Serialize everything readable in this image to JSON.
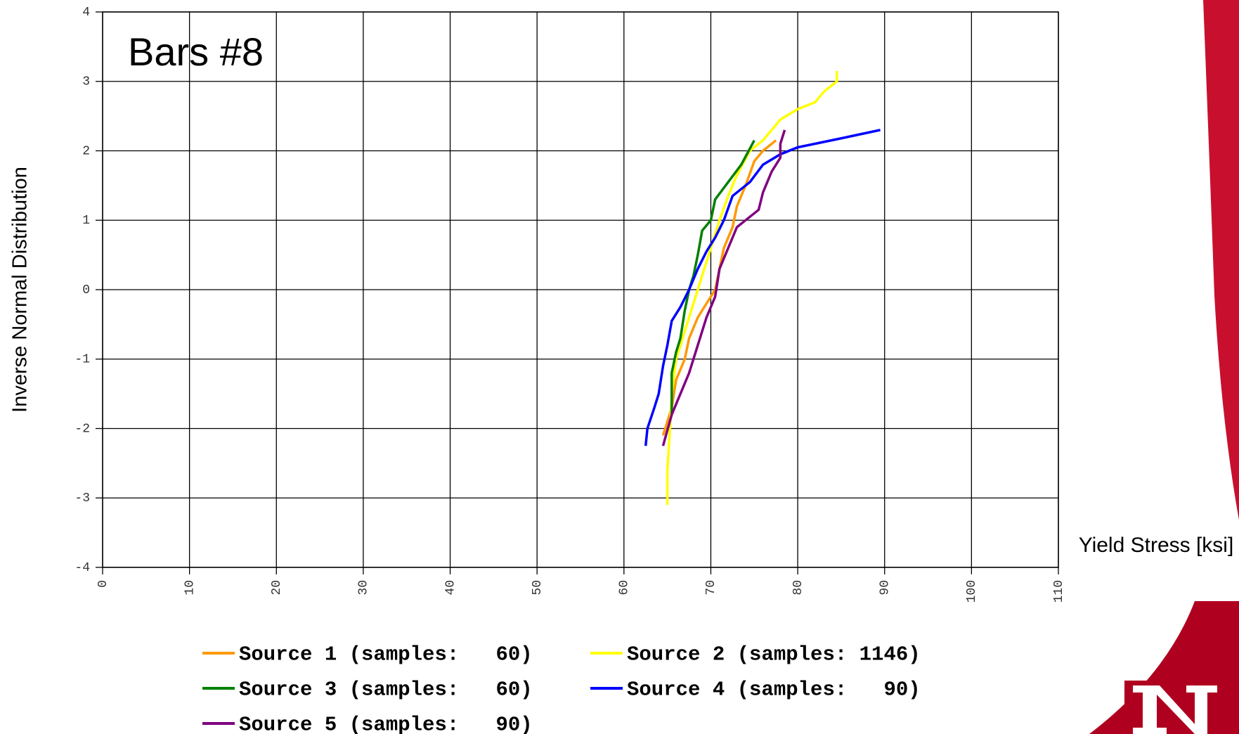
{
  "chart_data": {
    "type": "line",
    "title": "Bars #8",
    "y_label": "Inverse Normal Distribution",
    "x_label": "Yield Stress [ksi]",
    "xlim": [
      0,
      110
    ],
    "xticks": [
      0,
      10,
      20,
      30,
      40,
      50,
      60,
      70,
      80,
      90,
      100,
      110
    ],
    "ylim": [
      -4,
      4
    ],
    "yticks": [
      -4,
      -3,
      -2,
      -1,
      0,
      1,
      2,
      3,
      4
    ],
    "grid": true,
    "series": [
      {
        "name": "Source 1 (samples:   60)",
        "color": "#ff9900",
        "x": [
          64.5,
          65.5,
          66,
          67,
          67.5,
          68.5,
          69.5,
          70.5,
          71,
          71.5,
          72.5,
          73,
          74,
          75,
          76,
          77.5
        ],
        "values": [
          -2.1,
          -1.7,
          -1.3,
          -1.0,
          -0.7,
          -0.4,
          -0.2,
          0.0,
          0.3,
          0.6,
          0.9,
          1.2,
          1.5,
          1.85,
          2.0,
          2.15
        ]
      },
      {
        "name": "Source 2 (samples: 1146)",
        "color": "#ffff00",
        "x": [
          65,
          65,
          65.3,
          65.5,
          66,
          67,
          68,
          69,
          70,
          71,
          72,
          73,
          74.5,
          76,
          77,
          78,
          80,
          82,
          83,
          84.5,
          84.5
        ],
        "values": [
          -3.1,
          -2.6,
          -2.0,
          -1.5,
          -1.0,
          -0.6,
          -0.2,
          0.2,
          0.6,
          1.0,
          1.35,
          1.65,
          2.0,
          2.15,
          2.3,
          2.45,
          2.6,
          2.7,
          2.85,
          3.0,
          3.15
        ]
      },
      {
        "name": "Source 3 (samples:   60)",
        "color": "#008000",
        "x": [
          65.5,
          65.5,
          66,
          66.5,
          67,
          67.5,
          68,
          68.5,
          69,
          70,
          70.5,
          72,
          73.5,
          75
        ],
        "values": [
          -1.8,
          -1.2,
          -0.9,
          -0.7,
          -0.3,
          0.0,
          0.2,
          0.5,
          0.85,
          1.0,
          1.3,
          1.55,
          1.8,
          2.15
        ]
      },
      {
        "name": "Source 4 (samples:   90)",
        "color": "#0000ff",
        "x": [
          62.5,
          62.7,
          63.5,
          64,
          64.5,
          65,
          65.5,
          66.5,
          67.5,
          68.5,
          69.5,
          70.5,
          71.5,
          72.5,
          74.5,
          76,
          78,
          80,
          85,
          89.5
        ],
        "values": [
          -2.25,
          -2.0,
          -1.7,
          -1.5,
          -1.1,
          -0.8,
          -0.45,
          -0.25,
          0.0,
          0.3,
          0.55,
          0.75,
          1.0,
          1.35,
          1.55,
          1.8,
          1.95,
          2.05,
          2.18,
          2.3
        ]
      },
      {
        "name": "Source 5 (samples:   90)",
        "color": "#800080",
        "x": [
          64.5,
          65.5,
          66.5,
          67.5,
          68.5,
          69.5,
          70.5,
          71,
          72,
          73,
          74.5,
          75.5,
          76,
          77,
          78,
          78,
          78.5
        ],
        "values": [
          -2.25,
          -1.8,
          -1.5,
          -1.2,
          -0.8,
          -0.4,
          -0.1,
          0.3,
          0.6,
          0.9,
          1.05,
          1.15,
          1.4,
          1.7,
          1.9,
          2.1,
          2.3
        ]
      }
    ]
  }
}
